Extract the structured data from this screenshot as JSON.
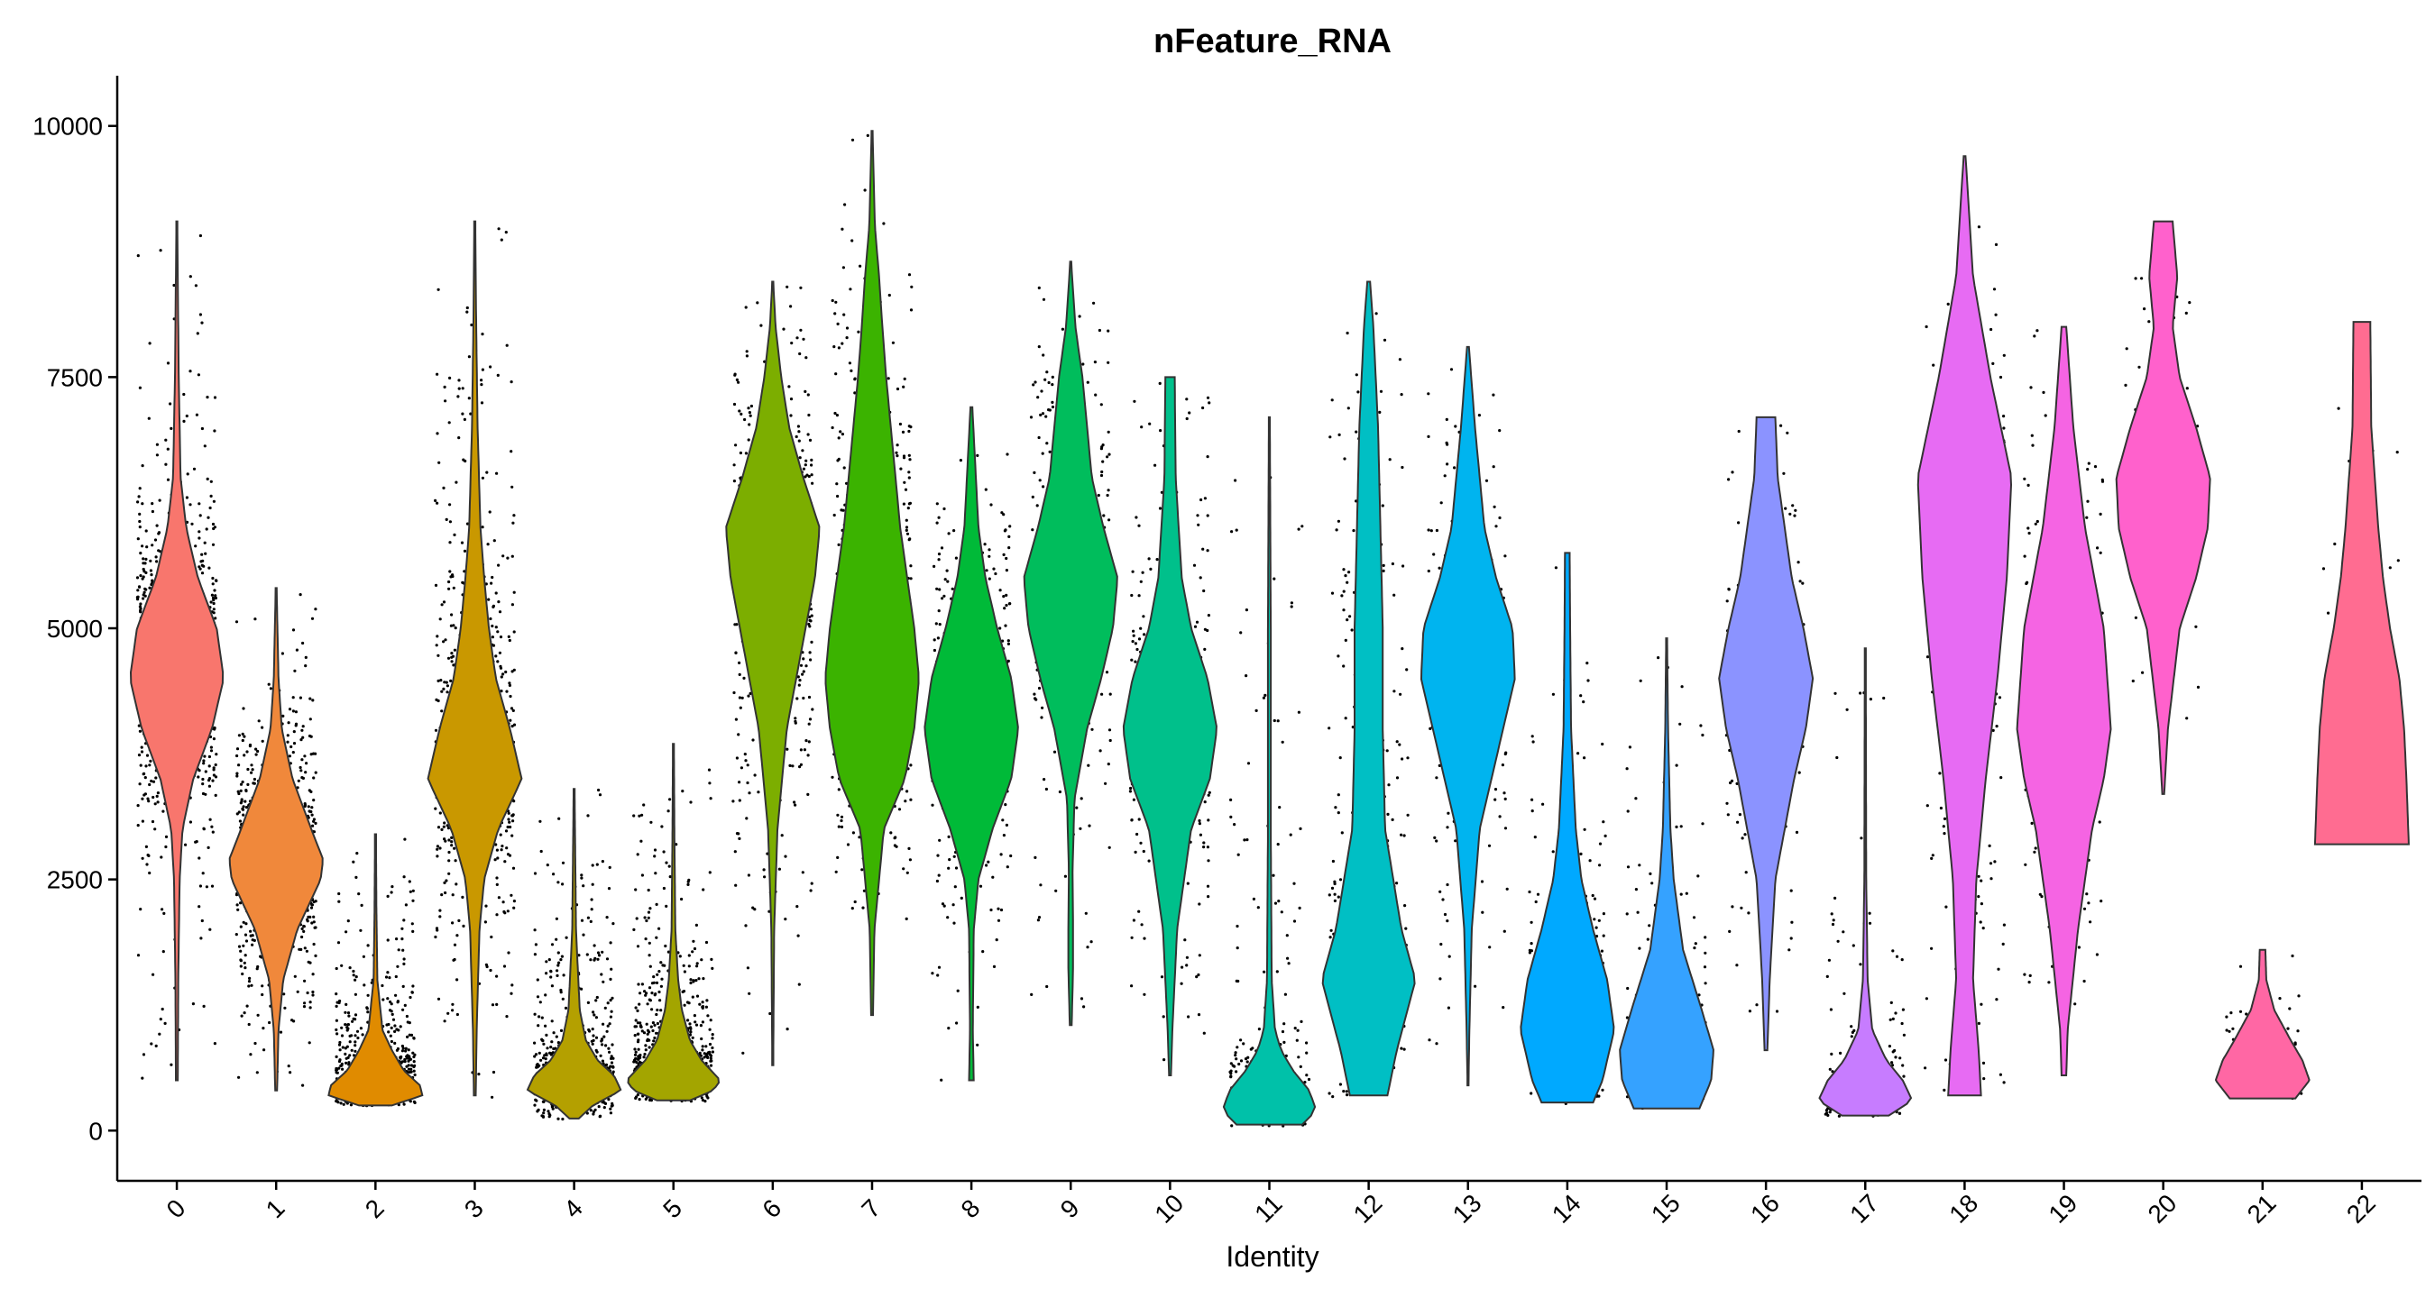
{
  "chart_data": {
    "type": "violin",
    "title": "nFeature_RNA",
    "xlabel": "Identity",
    "ylabel": "",
    "ylim": [
      -500,
      10500
    ],
    "y_ticks": [
      0,
      2500,
      5000,
      7500,
      10000
    ],
    "legend": "none",
    "grid": false,
    "categories": [
      "0",
      "1",
      "2",
      "3",
      "4",
      "5",
      "6",
      "7",
      "8",
      "9",
      "10",
      "11",
      "12",
      "13",
      "14",
      "15",
      "16",
      "17",
      "18",
      "19",
      "20",
      "21",
      "22"
    ],
    "colors": [
      "#F8766D",
      "#F0883B",
      "#E08B00",
      "#C99800",
      "#B4A000",
      "#A3A500",
      "#7CAE00",
      "#3BB300",
      "#00BA38",
      "#00BD5C",
      "#00C08B",
      "#00C1A9",
      "#00BFC4",
      "#00B4EF",
      "#00A9FF",
      "#35A2FF",
      "#8B93FF",
      "#C77CFF",
      "#E76BF3",
      "#F564E3",
      "#FF61CC",
      "#FF67A4",
      "#FF6C91"
    ],
    "groups": [
      {
        "id": "0",
        "min": 500,
        "max": 9050,
        "n": 900,
        "profile": [
          [
            500,
            0.02
          ],
          [
            1500,
            0.03
          ],
          [
            2500,
            0.06
          ],
          [
            3000,
            0.12
          ],
          [
            3500,
            0.35
          ],
          [
            4000,
            0.75
          ],
          [
            4500,
            1.0
          ],
          [
            5000,
            0.85
          ],
          [
            5500,
            0.45
          ],
          [
            6000,
            0.2
          ],
          [
            6500,
            0.08
          ],
          [
            7500,
            0.04
          ],
          [
            8500,
            0.02
          ],
          [
            9050,
            0.01
          ]
        ]
      },
      {
        "id": "1",
        "min": 400,
        "max": 5400,
        "n": 750,
        "profile": [
          [
            400,
            0.02
          ],
          [
            1000,
            0.05
          ],
          [
            1500,
            0.15
          ],
          [
            2000,
            0.45
          ],
          [
            2500,
            0.95
          ],
          [
            2700,
            1.0
          ],
          [
            3000,
            0.75
          ],
          [
            3500,
            0.35
          ],
          [
            4000,
            0.12
          ],
          [
            4500,
            0.05
          ],
          [
            5400,
            0.01
          ]
        ]
      },
      {
        "id": "2",
        "min": 250,
        "max": 2950,
        "n": 700,
        "profile": [
          [
            250,
            0.35
          ],
          [
            350,
            1.0
          ],
          [
            450,
            0.95
          ],
          [
            600,
            0.6
          ],
          [
            800,
            0.35
          ],
          [
            1000,
            0.15
          ],
          [
            1500,
            0.04
          ],
          [
            2200,
            0.02
          ],
          [
            2950,
            0.01
          ]
        ]
      },
      {
        "id": "3",
        "min": 350,
        "max": 9050,
        "n": 650,
        "profile": [
          [
            350,
            0.02
          ],
          [
            1000,
            0.04
          ],
          [
            2000,
            0.1
          ],
          [
            2500,
            0.2
          ],
          [
            3000,
            0.5
          ],
          [
            3500,
            1.0
          ],
          [
            4000,
            0.75
          ],
          [
            4500,
            0.45
          ],
          [
            5000,
            0.3
          ],
          [
            5500,
            0.2
          ],
          [
            6000,
            0.12
          ],
          [
            7000,
            0.06
          ],
          [
            8000,
            0.03
          ],
          [
            9050,
            0.01
          ]
        ]
      },
      {
        "id": "4",
        "min": 120,
        "max": 3400,
        "n": 650,
        "profile": [
          [
            120,
            0.1
          ],
          [
            250,
            0.4
          ],
          [
            400,
            1.0
          ],
          [
            550,
            0.85
          ],
          [
            700,
            0.5
          ],
          [
            900,
            0.25
          ],
          [
            1200,
            0.12
          ],
          [
            1600,
            0.08
          ],
          [
            2000,
            0.04
          ],
          [
            3400,
            0.01
          ]
        ]
      },
      {
        "id": "5",
        "min": 300,
        "max": 3850,
        "n": 600,
        "profile": [
          [
            300,
            0.35
          ],
          [
            400,
            0.85
          ],
          [
            500,
            1.0
          ],
          [
            700,
            0.6
          ],
          [
            900,
            0.35
          ],
          [
            1200,
            0.18
          ],
          [
            1500,
            0.1
          ],
          [
            2000,
            0.04
          ],
          [
            3000,
            0.02
          ],
          [
            3850,
            0.01
          ]
        ]
      },
      {
        "id": "6",
        "min": 650,
        "max": 8450,
        "n": 550,
        "profile": [
          [
            650,
            0.01
          ],
          [
            2000,
            0.03
          ],
          [
            3000,
            0.1
          ],
          [
            4000,
            0.3
          ],
          [
            4500,
            0.5
          ],
          [
            5000,
            0.7
          ],
          [
            5500,
            0.9
          ],
          [
            6000,
            1.0
          ],
          [
            6500,
            0.65
          ],
          [
            7000,
            0.35
          ],
          [
            7500,
            0.18
          ],
          [
            8000,
            0.06
          ],
          [
            8450,
            0.01
          ]
        ]
      },
      {
        "id": "7",
        "min": 1150,
        "max": 9950,
        "n": 550,
        "profile": [
          [
            1150,
            0.02
          ],
          [
            2000,
            0.05
          ],
          [
            3000,
            0.25
          ],
          [
            3500,
            0.7
          ],
          [
            4000,
            0.9
          ],
          [
            4500,
            1.0
          ],
          [
            5000,
            0.9
          ],
          [
            5500,
            0.75
          ],
          [
            6000,
            0.6
          ],
          [
            7000,
            0.4
          ],
          [
            7500,
            0.3
          ],
          [
            8000,
            0.22
          ],
          [
            8500,
            0.15
          ],
          [
            9000,
            0.06
          ],
          [
            9950,
            0.01
          ]
        ]
      },
      {
        "id": "8",
        "min": 500,
        "max": 7200,
        "n": 450,
        "profile": [
          [
            500,
            0.05
          ],
          [
            1000,
            0.03
          ],
          [
            2000,
            0.05
          ],
          [
            2500,
            0.15
          ],
          [
            3000,
            0.45
          ],
          [
            3500,
            0.85
          ],
          [
            4000,
            1.0
          ],
          [
            4500,
            0.85
          ],
          [
            5000,
            0.55
          ],
          [
            5500,
            0.3
          ],
          [
            6000,
            0.15
          ],
          [
            7200,
            0.02
          ]
        ]
      },
      {
        "id": "9",
        "min": 1050,
        "max": 8650,
        "n": 350,
        "profile": [
          [
            1050,
            0.02
          ],
          [
            1600,
            0.05
          ],
          [
            2000,
            0.05
          ],
          [
            2600,
            0.04
          ],
          [
            3300,
            0.08
          ],
          [
            4000,
            0.35
          ],
          [
            4500,
            0.65
          ],
          [
            5000,
            0.9
          ],
          [
            5500,
            1.0
          ],
          [
            6000,
            0.7
          ],
          [
            6500,
            0.45
          ],
          [
            7000,
            0.35
          ],
          [
            7500,
            0.25
          ],
          [
            8000,
            0.1
          ],
          [
            8650,
            0.01
          ]
        ]
      },
      {
        "id": "10",
        "min": 550,
        "max": 7500,
        "n": 300,
        "profile": [
          [
            550,
            0.02
          ],
          [
            1000,
            0.05
          ],
          [
            2000,
            0.15
          ],
          [
            3000,
            0.45
          ],
          [
            3500,
            0.85
          ],
          [
            4000,
            1.0
          ],
          [
            4500,
            0.8
          ],
          [
            5000,
            0.45
          ],
          [
            5500,
            0.25
          ],
          [
            6500,
            0.12
          ],
          [
            7500,
            0.1
          ]
        ]
      },
      {
        "id": "11",
        "min": 60,
        "max": 7100,
        "n": 250,
        "profile": [
          [
            60,
            0.7
          ],
          [
            200,
            1.0
          ],
          [
            400,
            0.85
          ],
          [
            600,
            0.5
          ],
          [
            800,
            0.25
          ],
          [
            1000,
            0.12
          ],
          [
            1500,
            0.05
          ],
          [
            3000,
            0.03
          ],
          [
            5000,
            0.03
          ],
          [
            7100,
            0.01
          ]
        ]
      },
      {
        "id": "12",
        "min": 350,
        "max": 8450,
        "n": 250,
        "profile": [
          [
            350,
            0.4
          ],
          [
            800,
            0.6
          ],
          [
            1500,
            1.0
          ],
          [
            2000,
            0.7
          ],
          [
            3000,
            0.35
          ],
          [
            4000,
            0.3
          ],
          [
            5000,
            0.3
          ],
          [
            6000,
            0.25
          ],
          [
            7000,
            0.2
          ],
          [
            8000,
            0.1
          ],
          [
            8450,
            0.03
          ]
        ]
      },
      {
        "id": "13",
        "min": 450,
        "max": 7800,
        "n": 250,
        "profile": [
          [
            450,
            0.01
          ],
          [
            1000,
            0.03
          ],
          [
            2000,
            0.08
          ],
          [
            3000,
            0.25
          ],
          [
            4000,
            0.75
          ],
          [
            4500,
            1.0
          ],
          [
            5000,
            0.95
          ],
          [
            5500,
            0.6
          ],
          [
            6000,
            0.35
          ],
          [
            6500,
            0.25
          ],
          [
            7000,
            0.15
          ],
          [
            7800,
            0.02
          ]
        ]
      },
      {
        "id": "14",
        "min": 280,
        "max": 5750,
        "n": 200,
        "profile": [
          [
            280,
            0.55
          ],
          [
            500,
            0.75
          ],
          [
            1000,
            1.0
          ],
          [
            1500,
            0.85
          ],
          [
            2000,
            0.55
          ],
          [
            2500,
            0.3
          ],
          [
            3000,
            0.18
          ],
          [
            4000,
            0.08
          ],
          [
            5000,
            0.06
          ],
          [
            5750,
            0.05
          ]
        ]
      },
      {
        "id": "15",
        "min": 220,
        "max": 4900,
        "n": 200,
        "profile": [
          [
            220,
            0.7
          ],
          [
            500,
            0.95
          ],
          [
            800,
            1.0
          ],
          [
            1200,
            0.75
          ],
          [
            1800,
            0.35
          ],
          [
            2500,
            0.15
          ],
          [
            3000,
            0.08
          ],
          [
            4000,
            0.03
          ],
          [
            4900,
            0.01
          ]
        ]
      },
      {
        "id": "16",
        "min": 800,
        "max": 7100,
        "n": 180,
        "profile": [
          [
            800,
            0.03
          ],
          [
            1500,
            0.08
          ],
          [
            2500,
            0.2
          ],
          [
            3500,
            0.6
          ],
          [
            4000,
            0.85
          ],
          [
            4500,
            1.0
          ],
          [
            5000,
            0.8
          ],
          [
            5500,
            0.55
          ],
          [
            6000,
            0.4
          ],
          [
            6500,
            0.25
          ],
          [
            7100,
            0.2
          ]
        ]
      },
      {
        "id": "17",
        "min": 150,
        "max": 4800,
        "n": 180,
        "profile": [
          [
            150,
            0.5
          ],
          [
            300,
            1.0
          ],
          [
            500,
            0.8
          ],
          [
            700,
            0.45
          ],
          [
            1000,
            0.15
          ],
          [
            1500,
            0.05
          ],
          [
            2500,
            0.02
          ],
          [
            4800,
            0.01
          ]
        ]
      },
      {
        "id": "18",
        "min": 350,
        "max": 9700,
        "n": 180,
        "profile": [
          [
            350,
            0.35
          ],
          [
            800,
            0.3
          ],
          [
            1500,
            0.18
          ],
          [
            2500,
            0.25
          ],
          [
            3500,
            0.45
          ],
          [
            4500,
            0.7
          ],
          [
            5500,
            0.9
          ],
          [
            6500,
            1.0
          ],
          [
            7500,
            0.55
          ],
          [
            8500,
            0.18
          ],
          [
            9700,
            0.02
          ]
        ]
      },
      {
        "id": "19",
        "min": 550,
        "max": 8000,
        "n": 180,
        "profile": [
          [
            550,
            0.05
          ],
          [
            1000,
            0.08
          ],
          [
            2000,
            0.3
          ],
          [
            3000,
            0.6
          ],
          [
            3500,
            0.85
          ],
          [
            4000,
            1.0
          ],
          [
            5000,
            0.85
          ],
          [
            6000,
            0.45
          ],
          [
            7000,
            0.2
          ],
          [
            8000,
            0.05
          ]
        ]
      },
      {
        "id": "20",
        "min": 3350,
        "max": 9050,
        "n": 110,
        "profile": [
          [
            3350,
            0.02
          ],
          [
            4000,
            0.1
          ],
          [
            5000,
            0.35
          ],
          [
            5500,
            0.7
          ],
          [
            6000,
            0.95
          ],
          [
            6500,
            1.0
          ],
          [
            7000,
            0.7
          ],
          [
            7500,
            0.35
          ],
          [
            8000,
            0.2
          ],
          [
            8500,
            0.3
          ],
          [
            9050,
            0.2
          ]
        ]
      },
      {
        "id": "21",
        "min": 320,
        "max": 1800,
        "n": 80,
        "profile": [
          [
            320,
            0.7
          ],
          [
            500,
            1.0
          ],
          [
            700,
            0.85
          ],
          [
            900,
            0.6
          ],
          [
            1200,
            0.25
          ],
          [
            1500,
            0.08
          ],
          [
            1800,
            0.06
          ]
        ]
      },
      {
        "id": "22",
        "min": 2850,
        "max": 8050,
        "n": 50,
        "profile": [
          [
            2850,
            1.0
          ],
          [
            3500,
            0.95
          ],
          [
            4000,
            0.9
          ],
          [
            4500,
            0.8
          ],
          [
            5000,
            0.6
          ],
          [
            5500,
            0.45
          ],
          [
            6000,
            0.35
          ],
          [
            7000,
            0.2
          ],
          [
            8050,
            0.18
          ]
        ]
      }
    ]
  }
}
